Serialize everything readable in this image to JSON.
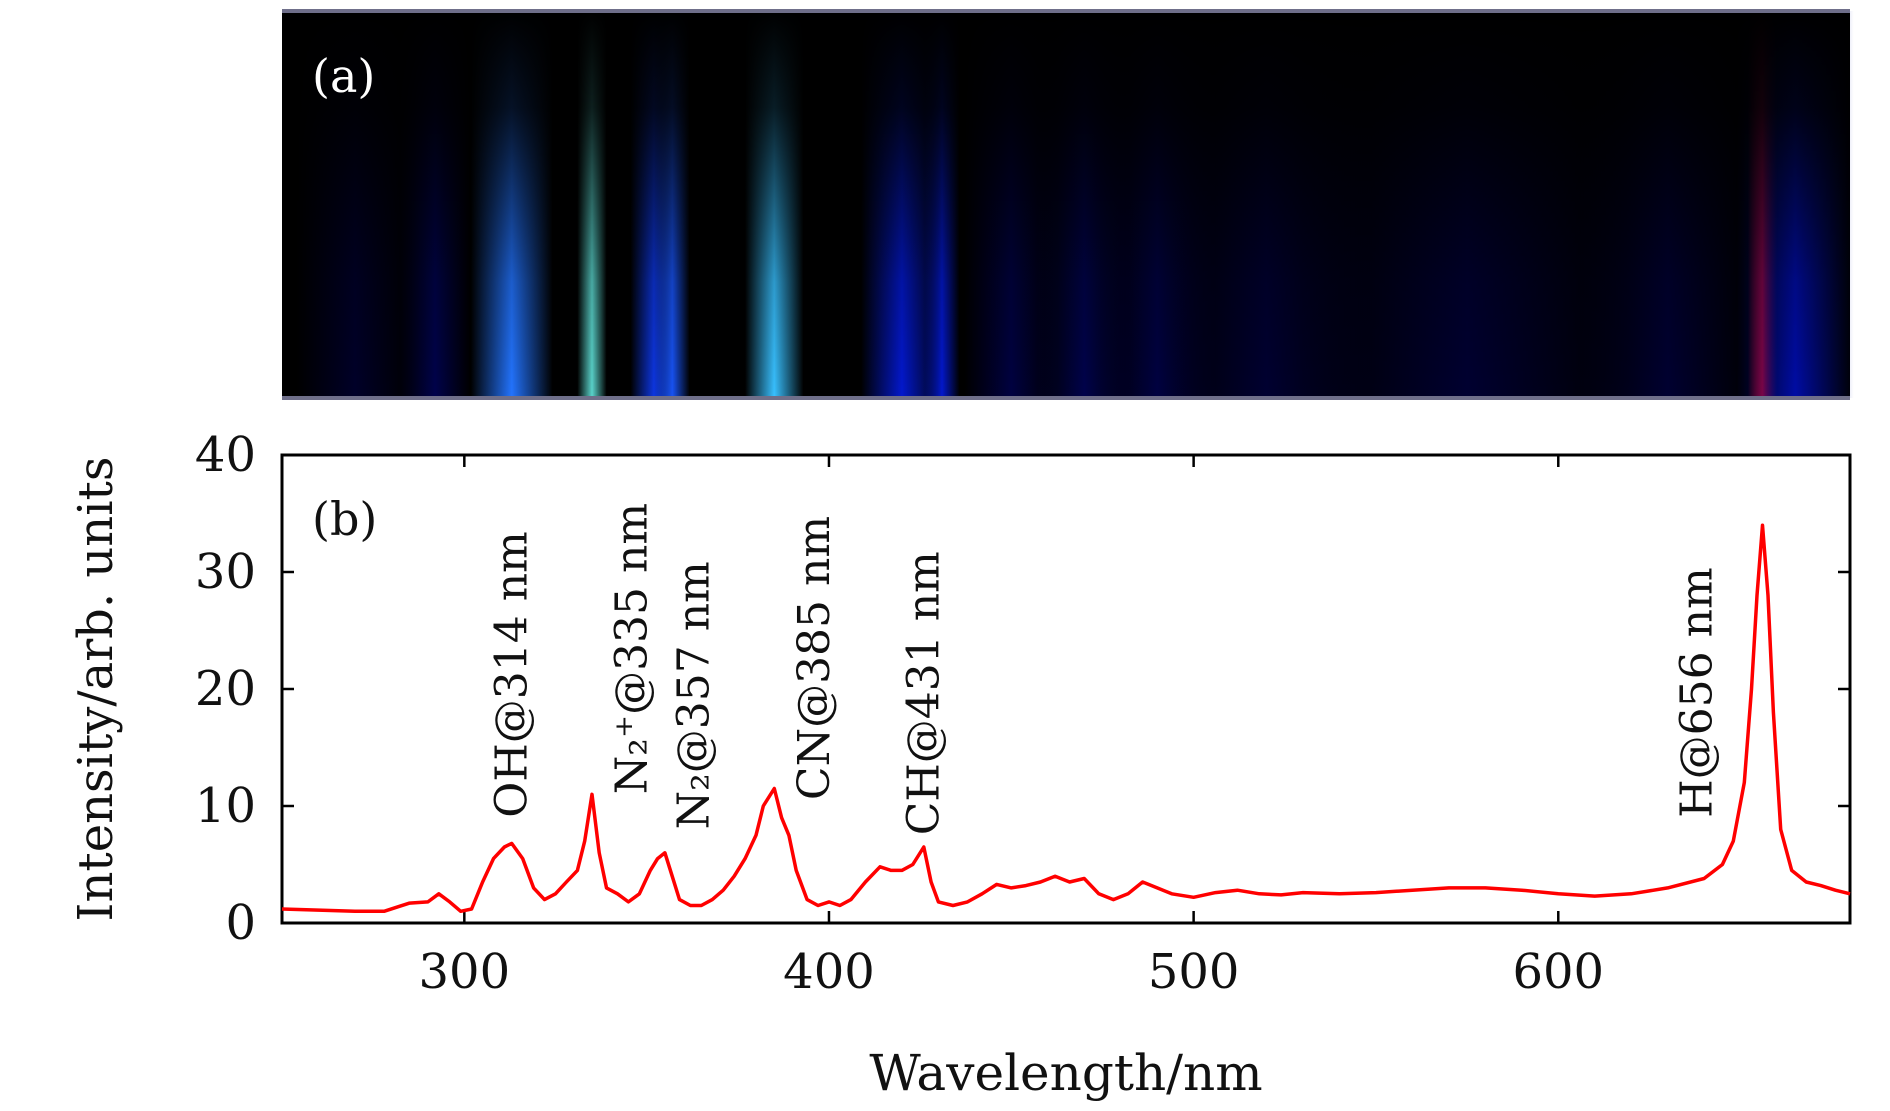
{
  "panel_a": {
    "label": "(a)",
    "colormap": [
      "#000000",
      "#00003a",
      "#0010c8",
      "#1e64ff",
      "#3cd0ff",
      "#d2e600",
      "#ff7a00",
      "#d80000"
    ],
    "bands": [
      {
        "wavelength": 270,
        "intensity": 0.1,
        "width": 10
      },
      {
        "wavelength": 292,
        "intensity": 0.16,
        "width": 6
      },
      {
        "wavelength": 313,
        "intensity": 0.45,
        "width": 7
      },
      {
        "wavelength": 335,
        "intensity": 0.6,
        "width": 2.5
      },
      {
        "wavelength": 352,
        "intensity": 0.35,
        "width": 4
      },
      {
        "wavelength": 357,
        "intensity": 0.4,
        "width": 3
      },
      {
        "wavelength": 385,
        "intensity": 0.55,
        "width": 5
      },
      {
        "wavelength": 420,
        "intensity": 0.3,
        "width": 7
      },
      {
        "wavelength": 431,
        "intensity": 0.3,
        "width": 3
      },
      {
        "wavelength": 450,
        "intensity": 0.15,
        "width": 8
      },
      {
        "wavelength": 470,
        "intensity": 0.16,
        "width": 8
      },
      {
        "wavelength": 490,
        "intensity": 0.15,
        "width": 10
      },
      {
        "wavelength": 520,
        "intensity": 0.12,
        "width": 18
      },
      {
        "wavelength": 575,
        "intensity": 0.12,
        "width": 28
      },
      {
        "wavelength": 630,
        "intensity": 0.12,
        "width": 15
      },
      {
        "wavelength": 656,
        "intensity": 1.0,
        "width": 2.5
      },
      {
        "wavelength": 665,
        "intensity": 0.25,
        "width": 10
      }
    ]
  },
  "chart_data": {
    "type": "line",
    "panel_label": "(b)",
    "xlabel": "Wavelength/nm",
    "ylabel": "Intensity/arb. units",
    "xlim": [
      250,
      680
    ],
    "ylim": [
      0,
      40
    ],
    "xticks": [
      300,
      400,
      500,
      600
    ],
    "yticks": [
      0,
      10,
      20,
      30,
      40
    ],
    "grid": false,
    "line_color": "#ff0000",
    "series": [
      {
        "x": [
          250,
          260,
          270,
          278,
          282,
          285,
          290,
          293,
          296,
          299,
          302,
          305,
          308,
          311,
          313,
          316,
          319,
          322,
          325,
          328,
          331,
          333,
          335,
          337,
          339,
          342,
          345,
          348,
          351,
          353,
          355,
          357,
          359,
          362,
          365,
          368,
          371,
          374,
          377,
          380,
          382,
          385,
          387,
          389,
          391,
          394,
          397,
          400,
          403,
          406,
          410,
          414,
          417,
          420,
          423,
          426,
          428,
          430,
          434,
          438,
          442,
          446,
          450,
          454,
          458,
          462,
          466,
          470,
          474,
          478,
          482,
          486,
          490,
          494,
          500,
          506,
          512,
          518,
          524,
          530,
          540,
          550,
          560,
          570,
          580,
          590,
          600,
          610,
          620,
          630,
          640,
          645,
          648,
          651,
          653,
          654.5,
          656,
          657.5,
          659,
          661,
          664,
          668,
          672,
          676,
          680
        ],
        "y": [
          1.2,
          1.1,
          1.0,
          1.0,
          1.4,
          1.7,
          1.8,
          2.5,
          1.8,
          1.0,
          1.2,
          3.5,
          5.5,
          6.5,
          6.8,
          5.5,
          3.0,
          2.0,
          2.5,
          3.5,
          4.5,
          7.0,
          11.0,
          6.0,
          3.0,
          2.5,
          1.8,
          2.5,
          4.5,
          5.5,
          6.0,
          4.0,
          2.0,
          1.5,
          1.5,
          2.0,
          2.8,
          4.0,
          5.5,
          7.5,
          10.0,
          11.5,
          9.0,
          7.5,
          4.5,
          2.0,
          1.5,
          1.8,
          1.5,
          2.0,
          3.5,
          4.8,
          4.5,
          4.5,
          5.0,
          6.5,
          3.5,
          1.8,
          1.5,
          1.8,
          2.5,
          3.3,
          3.0,
          3.2,
          3.5,
          4.0,
          3.5,
          3.8,
          2.5,
          2.0,
          2.5,
          3.5,
          3.0,
          2.5,
          2.2,
          2.6,
          2.8,
          2.5,
          2.4,
          2.6,
          2.5,
          2.6,
          2.8,
          3.0,
          3.0,
          2.8,
          2.5,
          2.3,
          2.5,
          3.0,
          3.8,
          5.0,
          7.0,
          12.0,
          20.0,
          28.0,
          34.0,
          28.0,
          18.0,
          8.0,
          4.5,
          3.5,
          3.2,
          2.8,
          2.5
        ]
      }
    ],
    "annotations": [
      {
        "text": "OH@314 nm",
        "x": 317,
        "y": 9
      },
      {
        "text": "N₂⁺@335 nm",
        "x": 350,
        "y": 11
      },
      {
        "text": "N₂@357 nm",
        "x": 367,
        "y": 8
      },
      {
        "text": "CN@385 nm",
        "x": 400,
        "y": 10.5
      },
      {
        "text": "CH@431 nm",
        "x": 430,
        "y": 7.5
      },
      {
        "text": "H@656 nm",
        "x": 642,
        "y": 9
      }
    ]
  }
}
